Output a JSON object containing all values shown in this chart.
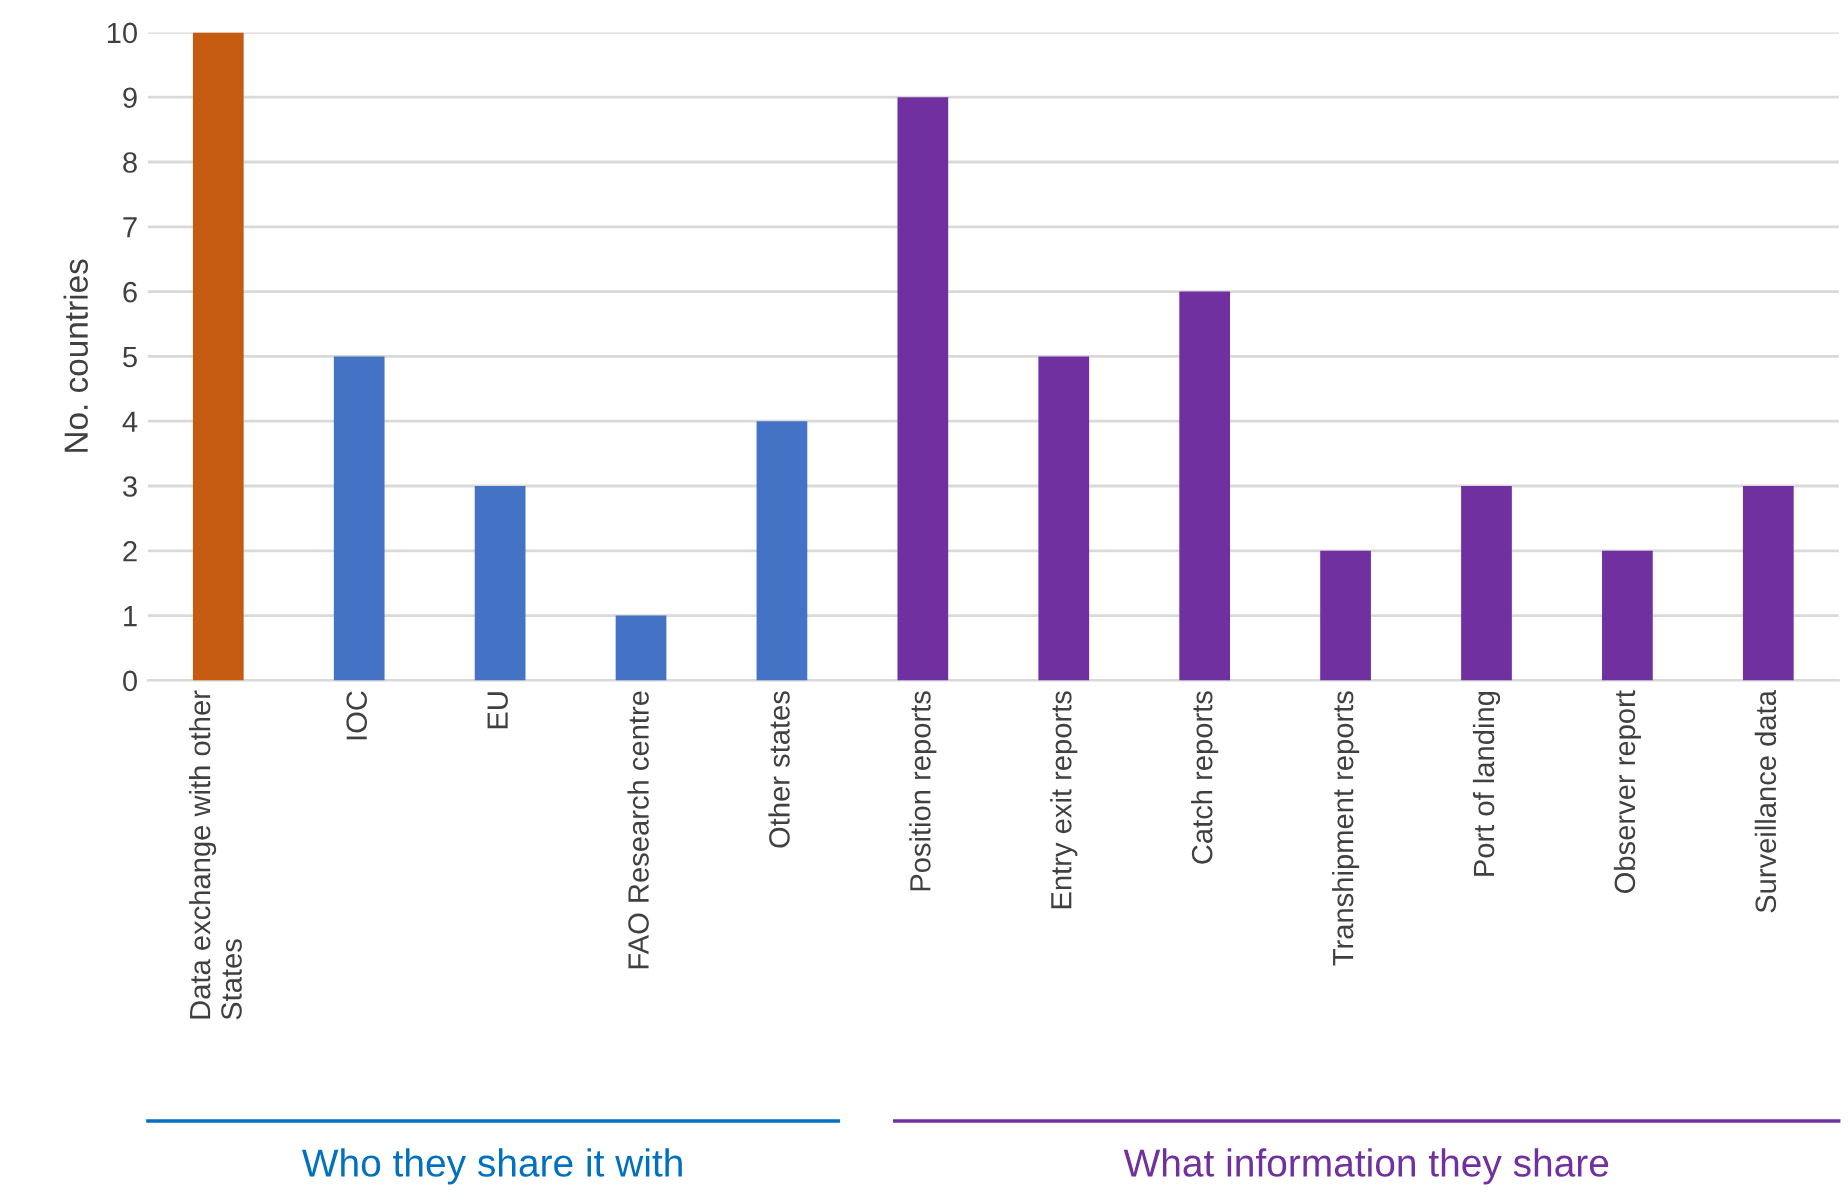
{
  "chart_data": {
    "type": "bar",
    "ylabel": "No. countries",
    "categories": [
      "Data exchange with other\nStates",
      "IOC",
      "EU",
      "FAO Research centre",
      "Other states",
      "Position reports",
      "Entry exit reports",
      "Catch reports",
      "Transhipment reports",
      "Port of landing",
      "Observer report",
      "Surveillance data"
    ],
    "values": [
      10,
      5,
      3,
      1,
      4,
      9,
      5,
      6,
      2,
      3,
      2,
      3
    ],
    "colors": [
      "#c55a11",
      "#4472c4",
      "#4472c4",
      "#4472c4",
      "#4472c4",
      "#7030a0",
      "#7030a0",
      "#7030a0",
      "#7030a0",
      "#7030a0",
      "#7030a0",
      "#7030a0"
    ],
    "ylim": [
      0,
      10
    ],
    "yticks": [
      0,
      1,
      2,
      3,
      4,
      5,
      6,
      7,
      8,
      9,
      10
    ],
    "grid": "y",
    "legend": false,
    "annotations": [
      "Who they share it with",
      "What information they share"
    ]
  }
}
